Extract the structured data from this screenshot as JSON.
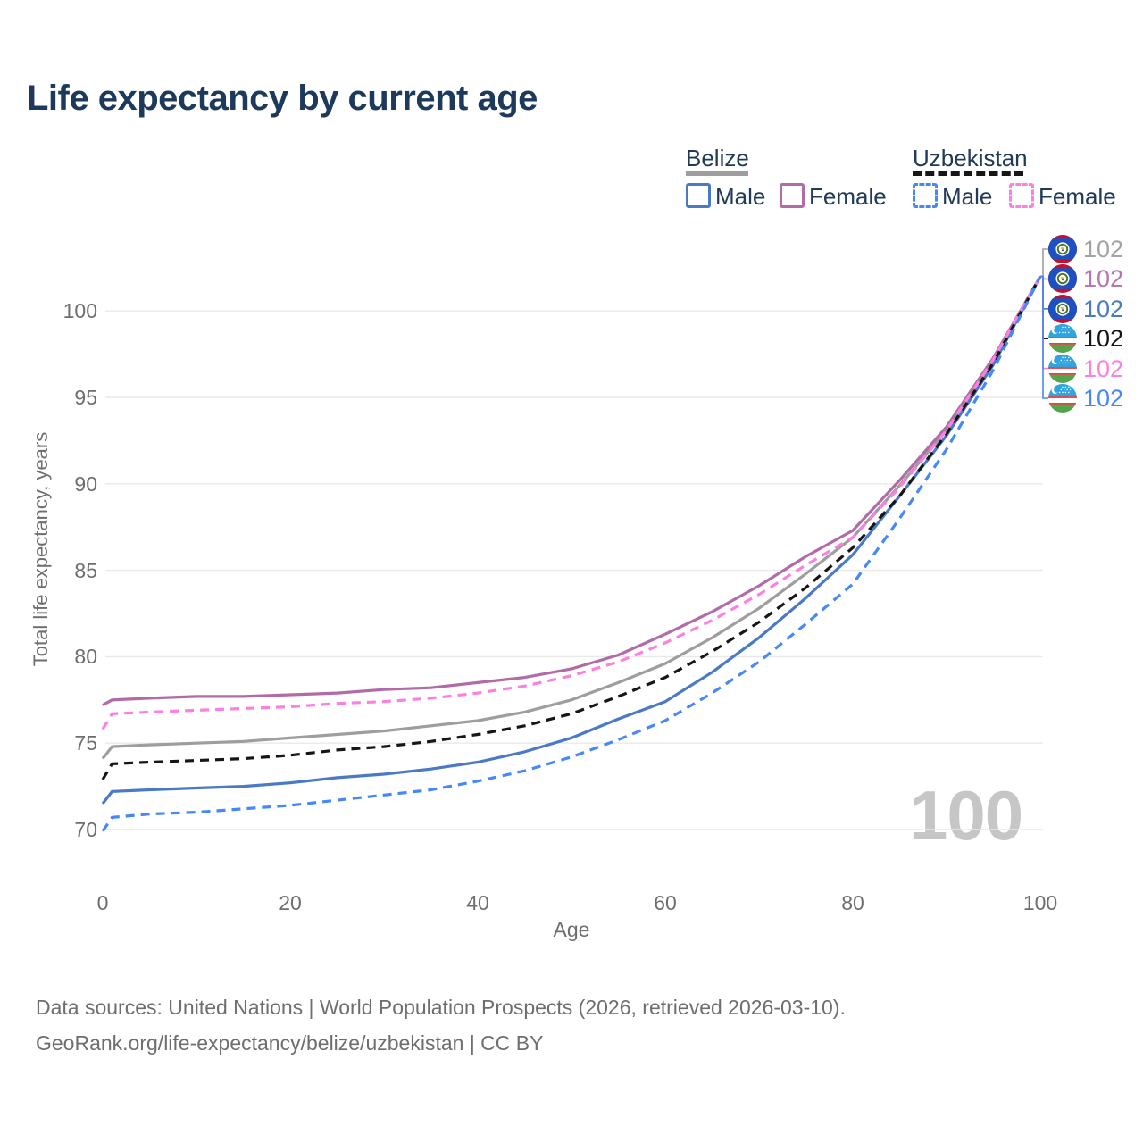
{
  "title": "Life expectancy by current age",
  "legend": {
    "groups": [
      {
        "label": "Belize",
        "line_color": "#9e9e9e",
        "line_style": "solid",
        "items": [
          {
            "label": "Male",
            "color": "#4a7ac6",
            "style": "solid"
          },
          {
            "label": "Female",
            "color": "#b16ca8",
            "style": "solid"
          }
        ]
      },
      {
        "label": "Uzbekistan",
        "line_color": "#161616",
        "line_style": "dashed",
        "items": [
          {
            "label": "Male",
            "color": "#4689f4",
            "style": "dashed"
          },
          {
            "label": "Female",
            "color": "#fb80e0",
            "style": "dashed"
          }
        ]
      }
    ]
  },
  "chart_data": {
    "type": "line",
    "title": "Life expectancy by current age",
    "xlabel": "Age",
    "ylabel": "Total life expectancy, years",
    "xlim": [
      0,
      100
    ],
    "ylim": [
      70,
      102
    ],
    "xticks": [
      0,
      20,
      40,
      60,
      80,
      100
    ],
    "yticks": [
      70,
      75,
      80,
      85,
      90,
      95,
      100
    ],
    "grid": "horizontal-only",
    "legend_position": "top-right",
    "x": [
      0,
      1,
      5,
      10,
      15,
      20,
      25,
      30,
      35,
      40,
      45,
      50,
      55,
      60,
      65,
      70,
      75,
      80,
      85,
      90,
      95,
      100
    ],
    "series": [
      {
        "id": "belize-all",
        "country": "Belize",
        "sex": "Both sexes",
        "color": "#9e9e9e",
        "dashed": false,
        "flag": "belize",
        "end_label": "102",
        "end_label_color": "#a3a3a3",
        "values": [
          74.1,
          74.8,
          74.9,
          75.0,
          75.1,
          75.3,
          75.5,
          75.7,
          76.0,
          76.3,
          76.8,
          77.5,
          78.5,
          79.6,
          81.1,
          82.8,
          84.8,
          86.9,
          89.9,
          93.1,
          97.1,
          102
        ]
      },
      {
        "id": "belize-female",
        "country": "Belize",
        "sex": "Female",
        "color": "#b16ca8",
        "dashed": false,
        "flag": "belize",
        "end_label": "102",
        "end_label_color": "#b577b2",
        "values": [
          77.2,
          77.5,
          77.6,
          77.7,
          77.7,
          77.8,
          77.9,
          78.1,
          78.2,
          78.5,
          78.8,
          79.3,
          80.1,
          81.3,
          82.6,
          84.1,
          85.8,
          87.3,
          90.2,
          93.3,
          97.3,
          102
        ]
      },
      {
        "id": "belize-male",
        "country": "Belize",
        "sex": "Male",
        "color": "#4a7ac6",
        "dashed": false,
        "flag": "belize",
        "end_label": "102",
        "end_label_color": "#4a7ac6",
        "values": [
          71.5,
          72.2,
          72.3,
          72.4,
          72.5,
          72.7,
          73.0,
          73.2,
          73.5,
          73.9,
          74.5,
          75.3,
          76.4,
          77.4,
          79.1,
          81.1,
          83.4,
          85.9,
          89.3,
          92.8,
          96.9,
          102
        ]
      },
      {
        "id": "uzbekistan-all",
        "country": "Uzbekistan",
        "sex": "Both sexes",
        "color": "#161616",
        "dashed": true,
        "flag": "uzbekistan",
        "end_label": "102",
        "end_label_color": "#161616",
        "values": [
          72.9,
          73.8,
          73.9,
          74.0,
          74.1,
          74.3,
          74.6,
          74.8,
          75.1,
          75.5,
          76.0,
          76.7,
          77.7,
          78.8,
          80.3,
          82.0,
          84.0,
          86.3,
          89.3,
          92.9,
          97.0,
          102
        ]
      },
      {
        "id": "uzbekistan-female",
        "country": "Uzbekistan",
        "sex": "Female",
        "color": "#fb80e0",
        "dashed": true,
        "flag": "uzbekistan",
        "end_label": "102",
        "end_label_color": "#fb80e0",
        "values": [
          75.8,
          76.7,
          76.8,
          76.9,
          77.0,
          77.1,
          77.3,
          77.4,
          77.6,
          77.9,
          78.3,
          78.9,
          79.7,
          80.8,
          82.1,
          83.6,
          85.3,
          86.9,
          89.8,
          93.1,
          97.2,
          102
        ]
      },
      {
        "id": "uzbekistan-male",
        "country": "Uzbekistan",
        "sex": "Male",
        "color": "#4689f4",
        "dashed": true,
        "flag": "uzbekistan",
        "end_label": "102",
        "end_label_color": "#4689f4",
        "values": [
          69.9,
          70.7,
          70.9,
          71.0,
          71.2,
          71.4,
          71.7,
          72.0,
          72.3,
          72.8,
          73.4,
          74.2,
          75.2,
          76.3,
          77.9,
          79.7,
          81.9,
          84.2,
          88.0,
          92.0,
          96.6,
          102
        ]
      }
    ]
  },
  "annotations": {
    "age_watermark": "100"
  },
  "colors": {
    "title_text": "#1d3a5c",
    "axis_text": "#6e6e6e",
    "gridline": "#e9e9e9",
    "watermark": "#c6c6c6"
  },
  "footer": {
    "line1": "Data sources: United Nations | World Population Prospects (2026, retrieved 2026-03-10).",
    "line2": "GeoRank.org/life-expectancy/belize/uzbekistan | CC BY"
  }
}
